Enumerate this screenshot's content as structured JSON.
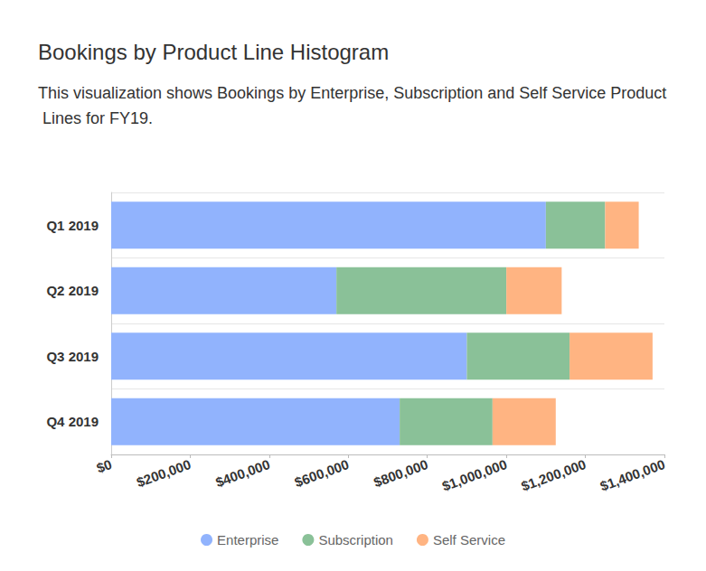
{
  "chart_data": {
    "type": "bar",
    "title": "Bookings by Product Line Histogram",
    "subtitle": "This visualization shows Bookings by Enterprise, Subscription and Self Service Product Lines for FY19.",
    "orientation": "horizontal",
    "stacked": true,
    "grid": true,
    "legend": "bottom",
    "categories": [
      "Q1 2019",
      "Q2 2019",
      "Q3 2019",
      "Q4 2019"
    ],
    "series": [
      {
        "name": "Enterprise",
        "color": "#91b3fd",
        "values": [
          1100000,
          570000,
          900000,
          730000
        ]
      },
      {
        "name": "Subscription",
        "color": "#8ac198",
        "values": [
          150000,
          430000,
          260000,
          235000
        ]
      },
      {
        "name": "Self Service",
        "color": "#ffb482",
        "values": [
          85000,
          140000,
          210000,
          160000
        ]
      }
    ],
    "xlim": [
      0,
      1400000
    ],
    "xticks": [
      {
        "value": 0,
        "label": "$0"
      },
      {
        "value": 200000,
        "label": "$200,000"
      },
      {
        "value": 400000,
        "label": "$400,000"
      },
      {
        "value": 600000,
        "label": "$600,000"
      },
      {
        "value": 800000,
        "label": "$800,000"
      },
      {
        "value": 1000000,
        "label": "$1,000,000"
      },
      {
        "value": 1200000,
        "label": "$1,200,000"
      },
      {
        "value": 1400000,
        "label": "$1,400,000"
      }
    ]
  }
}
